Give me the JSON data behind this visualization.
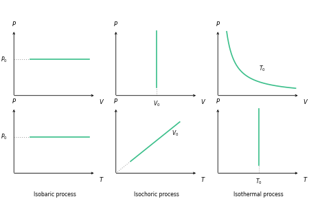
{
  "bg_color": "#ffffff",
  "line_color": "#3abf8a",
  "dashed_color": "#999999",
  "text_color": "#000000",
  "fig_width": 4.5,
  "fig_height": 2.89,
  "dpi": 100,
  "title_fontsize": 5.5,
  "label_fontsize": 6.0,
  "tick_label_fontsize": 5.5,
  "lw": 1.2,
  "p0_label": "$P_0$",
  "v0_label": "$V_0$",
  "t0_label": "$T_0$",
  "T0_curve_label": "$T_0$"
}
